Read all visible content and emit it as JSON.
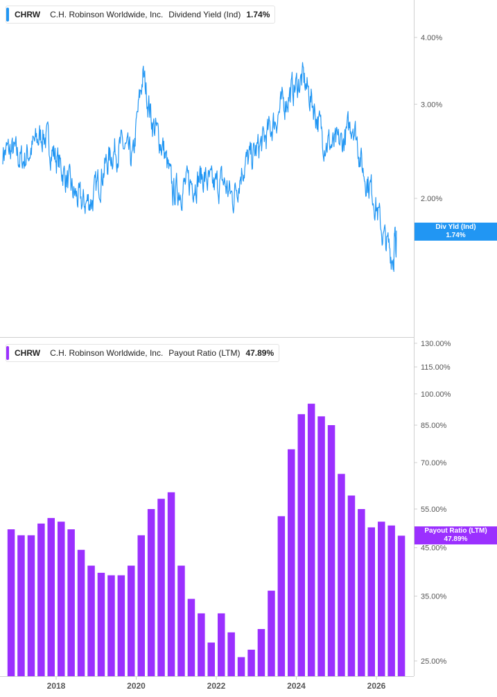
{
  "colors": {
    "yield_line": "#2196f3",
    "payout_bar": "#9b30ff",
    "axis": "#cfcfcf",
    "tick_text": "#555555"
  },
  "top_legend": {
    "ticker": "CHRW",
    "company": "C.H. Robinson Worldwide, Inc.",
    "metric": "Dividend Yield (Ind)",
    "value": "1.74%"
  },
  "bottom_legend": {
    "ticker": "CHRW",
    "company": "C.H. Robinson Worldwide, Inc.",
    "metric": "Payout Ratio (LTM)",
    "value": "47.89%"
  },
  "top_tag": {
    "line1": "Div Yld (Ind)",
    "line2": "1.74%"
  },
  "bottom_tag": {
    "line1": "Payout Ratio (LTM)",
    "line2": "47.89%"
  },
  "x_ticks": [
    "2018",
    "2020",
    "2022",
    "2024",
    "2026"
  ],
  "chart_data": [
    {
      "type": "line",
      "series": [
        {
          "name": "Dividend Yield (Ind)"
        }
      ],
      "x": [
        "2016-09",
        "2016-12",
        "2017-03",
        "2017-06",
        "2017-09",
        "2017-12",
        "2018-03",
        "2018-06",
        "2018-09",
        "2018-12",
        "2019-03",
        "2019-06",
        "2019-09",
        "2019-12",
        "2020-03",
        "2020-06",
        "2020-09",
        "2020-12",
        "2021-03",
        "2021-06",
        "2021-09",
        "2021-12",
        "2022-03",
        "2022-06",
        "2022-09",
        "2022-12",
        "2023-03",
        "2023-06",
        "2023-09",
        "2023-12",
        "2024-03",
        "2024-06",
        "2024-09",
        "2024-12",
        "2025-03",
        "2025-06",
        "2025-09",
        "2025-12",
        "2026-03",
        "2026-06",
        "2026-07"
      ],
      "y": [
        2.45,
        2.45,
        2.35,
        2.5,
        2.65,
        2.45,
        2.25,
        2.05,
        1.95,
        2.0,
        2.25,
        2.45,
        2.5,
        2.35,
        3.4,
        2.75,
        2.5,
        2.05,
        2.1,
        2.15,
        2.2,
        2.1,
        2.15,
        2.0,
        2.3,
        2.4,
        2.55,
        2.75,
        3.0,
        3.2,
        3.35,
        3.0,
        2.6,
        2.5,
        2.55,
        2.8,
        2.25,
        2.05,
        1.7,
        1.55,
        1.74
      ],
      "y_ticks": [
        "4.00%",
        "3.00%",
        "2.00%"
      ],
      "y_scale": "log",
      "ylim": [
        1.4,
        4.6
      ]
    },
    {
      "type": "bar",
      "series": [
        {
          "name": "Payout Ratio (LTM)"
        }
      ],
      "categories": [
        "2016Q4",
        "2017Q1",
        "2017Q2",
        "2017Q3",
        "2017Q4",
        "2018Q1",
        "2018Q2",
        "2018Q3",
        "2018Q4",
        "2019Q1",
        "2019Q2",
        "2019Q3",
        "2019Q4",
        "2020Q1",
        "2020Q2",
        "2020Q3",
        "2020Q4",
        "2021Q1",
        "2021Q2",
        "2021Q3",
        "2021Q4",
        "2022Q1",
        "2022Q2",
        "2022Q3",
        "2022Q4",
        "2023Q1",
        "2023Q2",
        "2023Q3",
        "2023Q4",
        "2024Q1",
        "2024Q2",
        "2024Q3",
        "2024Q4",
        "2025Q1",
        "2025Q2",
        "2025Q3",
        "2025Q4",
        "2026Q1",
        "2026Q2",
        "2026Q3"
      ],
      "values": [
        49.5,
        48.0,
        48.0,
        51.0,
        52.5,
        51.5,
        49.5,
        44.5,
        41.0,
        39.5,
        39.0,
        39.0,
        41.0,
        48.0,
        55.0,
        58.0,
        60.0,
        41.0,
        34.5,
        32.0,
        27.5,
        32.0,
        29.0,
        25.5,
        26.5,
        29.5,
        36.0,
        53.0,
        75.0,
        90.0,
        95.0,
        89.0,
        85.0,
        66.0,
        59.0,
        55.0,
        50.0,
        51.5,
        50.5,
        47.89
      ],
      "y_ticks": [
        "130.00%",
        "115.00%",
        "100.00%",
        "85.00%",
        "70.00%",
        "55.00%",
        "45.00%",
        "35.00%",
        "25.00%"
      ],
      "y_scale": "log",
      "ylim": [
        23.5,
        130
      ]
    }
  ]
}
